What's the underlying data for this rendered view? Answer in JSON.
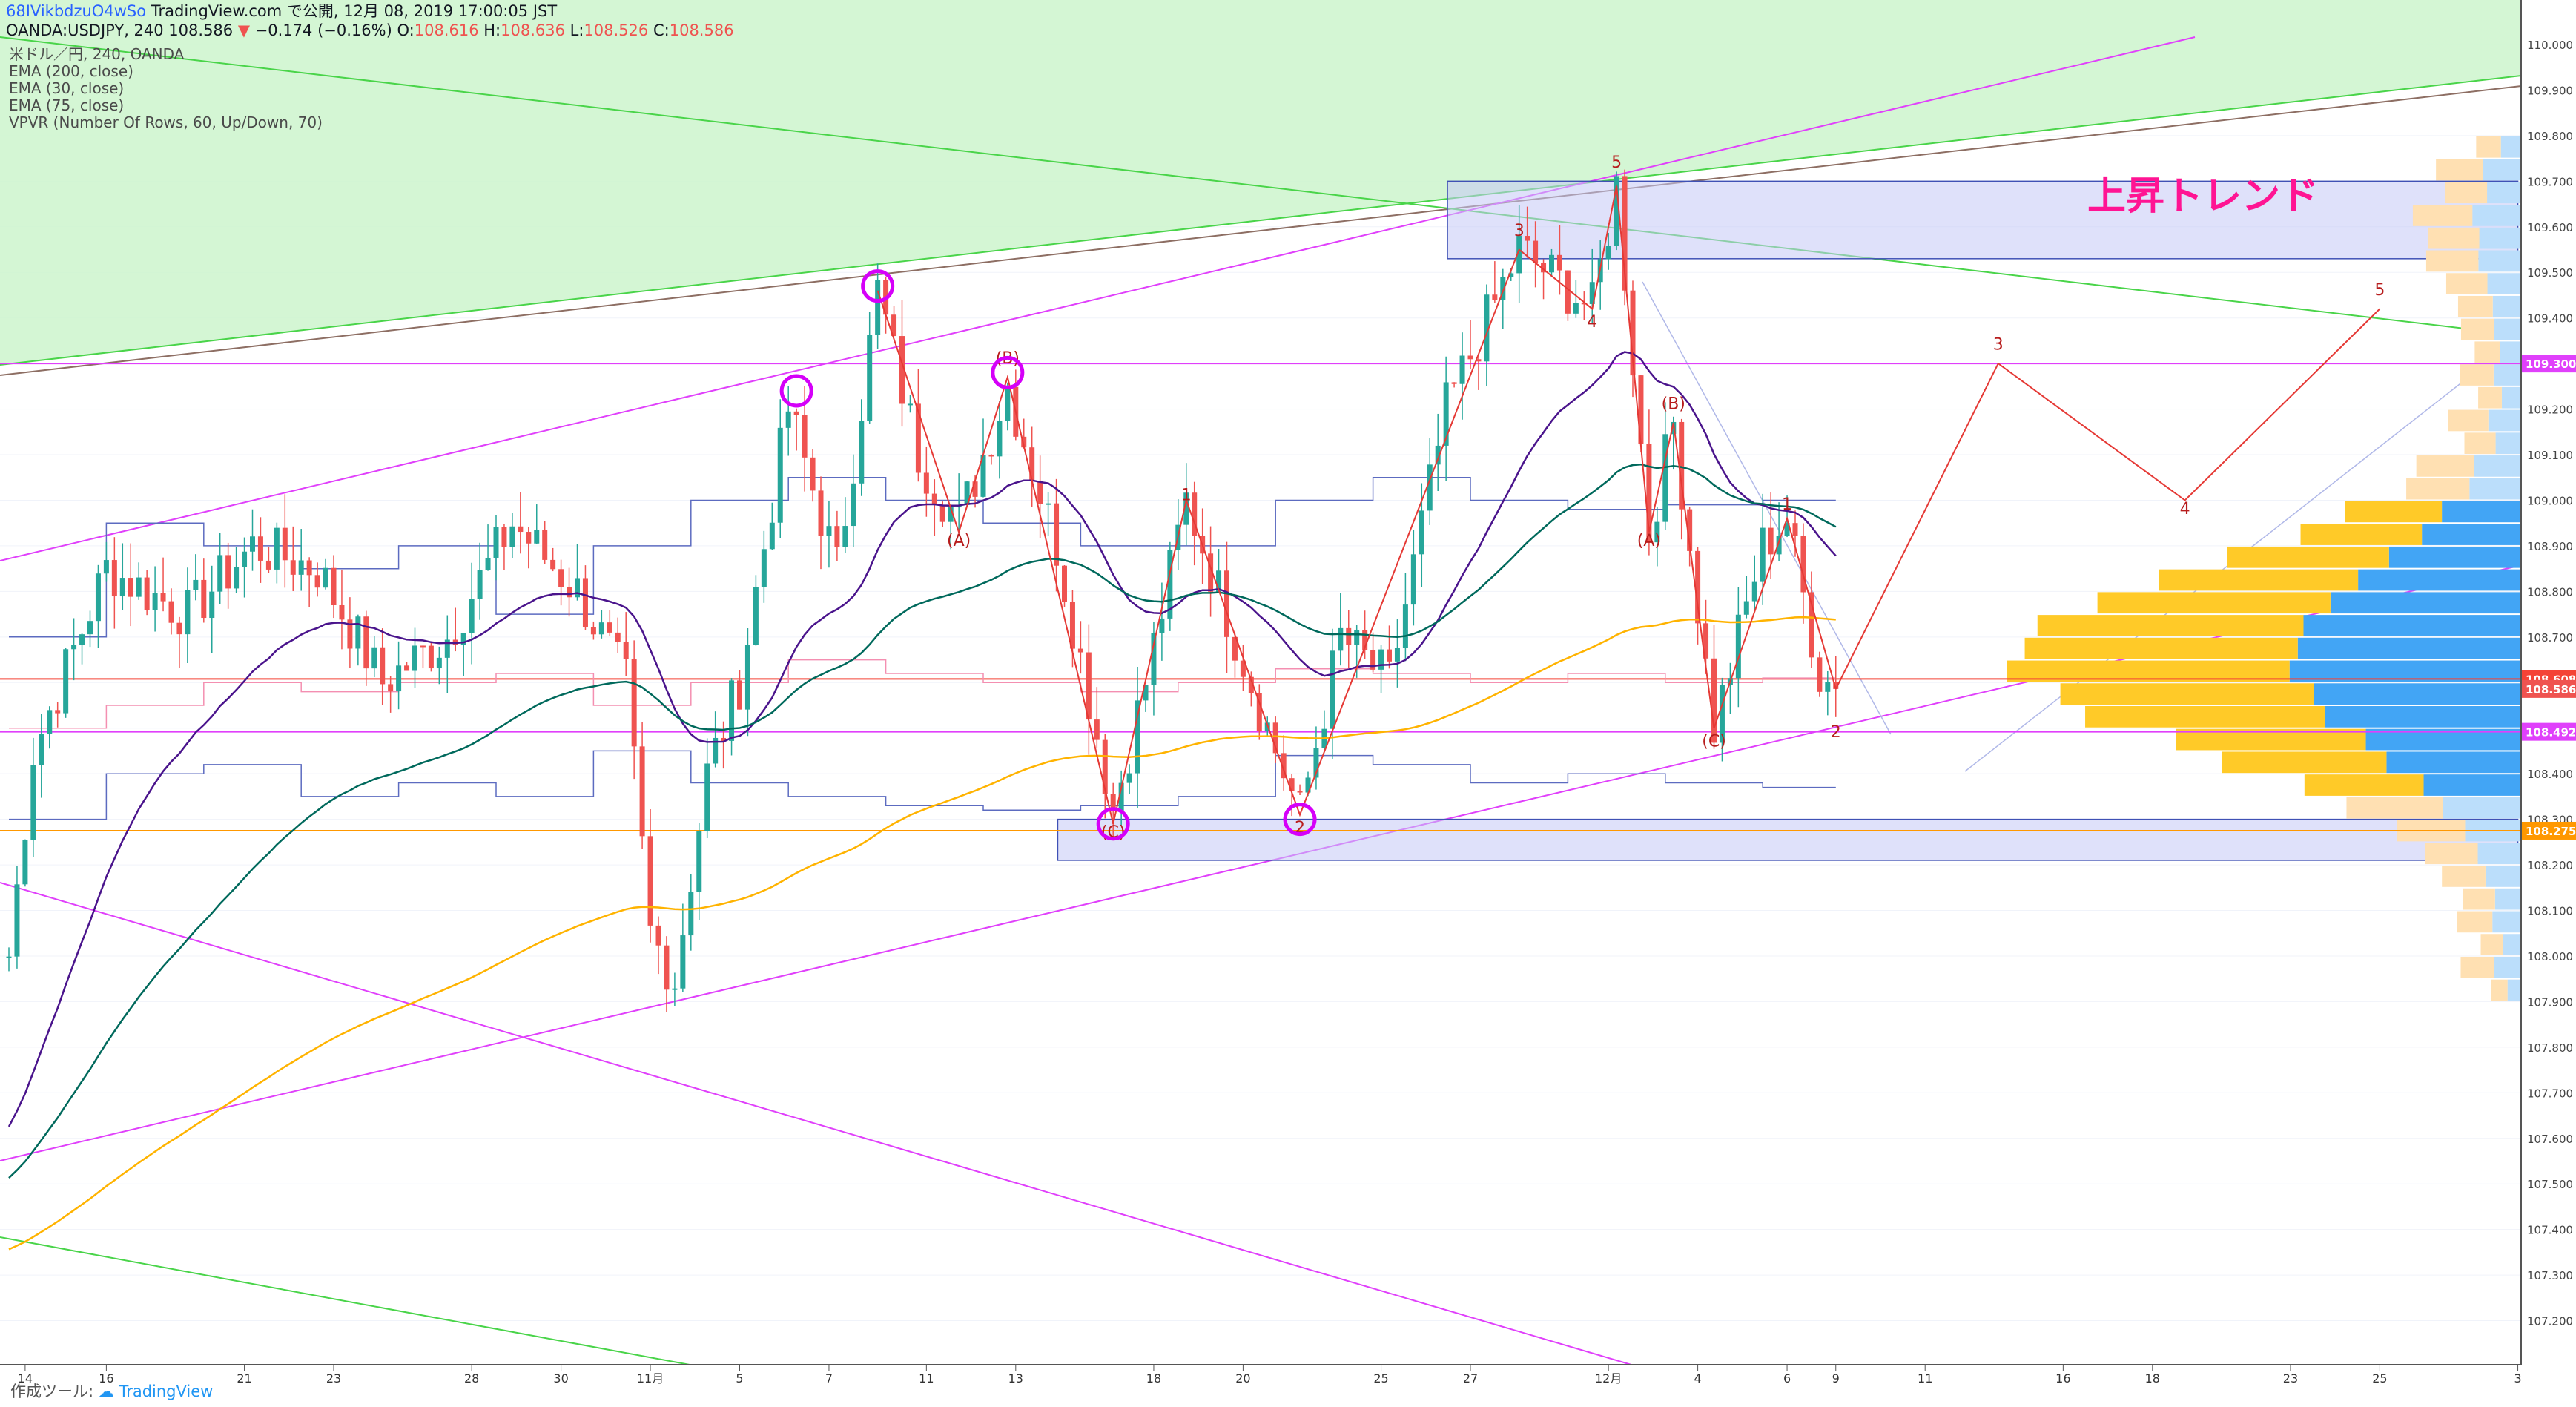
{
  "header": {
    "user": "68IVikbdzuO4wSo",
    "published": "TradingView.com で公開, 12月 08, 2019 17:00:05 JST",
    "symbol_line": "OANDA:USDJPY, 240 108.586",
    "change": "−0.174 (−0.16%)",
    "o_label": "O:",
    "o": "108.616",
    "h_label": "H:",
    "h": "108.636",
    "l_label": "L:",
    "l": "108.526",
    "c_label": "C:",
    "c": "108.586"
  },
  "indicators": [
    "米ドル／円, 240, OANDA",
    "EMA (200, close)",
    "EMA (30, close)",
    "EMA (75, close)",
    "VPVR (Number Of Rows, 60, Up/Down, 70)"
  ],
  "annotation": "上昇トレンド",
  "footer": {
    "made_with": "作成ツール:",
    "brand": "TradingView"
  },
  "colors": {
    "up": "#26a69a",
    "down": "#ef5350",
    "magenta": "#e040fb",
    "green": "#4caf50",
    "ema200": "#ffb300",
    "ema30": "#4a148c",
    "ema75": "#00695c",
    "wave": "#e53935"
  },
  "chart_data": {
    "type": "candlestick",
    "y_axis": {
      "min": 107.1,
      "max": 110.0,
      "ticks": [
        "107.200",
        "107.300",
        "107.400",
        "107.500",
        "107.600",
        "107.700",
        "107.800",
        "107.900",
        "108.000",
        "108.100",
        "108.200",
        "108.300",
        "108.400",
        "108.500",
        "108.600",
        "108.700",
        "108.800",
        "108.900",
        "109.000",
        "109.100",
        "109.200",
        "109.300",
        "109.400",
        "109.500",
        "109.600",
        "109.700",
        "109.800",
        "109.900",
        "110.000"
      ]
    },
    "x_axis": {
      "labels": [
        {
          "t": "14",
          "i": 2
        },
        {
          "t": "16",
          "i": 12
        },
        {
          "t": "21",
          "i": 29
        },
        {
          "t": "23",
          "i": 40
        },
        {
          "t": "28",
          "i": 57
        },
        {
          "t": "30",
          "i": 68
        },
        {
          "t": "11月",
          "i": 79
        },
        {
          "t": "5",
          "i": 90
        },
        {
          "t": "7",
          "i": 101
        },
        {
          "t": "11",
          "i": 113
        },
        {
          "t": "13",
          "i": 124
        },
        {
          "t": "18",
          "i": 141
        },
        {
          "t": "20",
          "i": 152
        },
        {
          "t": "25",
          "i": 169
        },
        {
          "t": "27",
          "i": 180
        },
        {
          "t": "12月",
          "i": 197
        },
        {
          "t": "4",
          "i": 208
        },
        {
          "t": "6",
          "i": 219
        },
        {
          "t": "9",
          "i": 225
        },
        {
          "t": "11",
          "i": 236
        },
        {
          "t": "16",
          "i": 253
        },
        {
          "t": "18",
          "i": 264
        },
        {
          "t": "23",
          "i": 281
        },
        {
          "t": "25",
          "i": 292
        },
        {
          "t": "3",
          "i": 309
        }
      ]
    },
    "price_labels": [
      {
        "text": "109.300",
        "value": 109.3,
        "color": "#e040fb"
      },
      {
        "text": "108.608",
        "value": 108.608,
        "color": "#f44336"
      },
      {
        "text": "108.586",
        "value": 108.586,
        "color": "#ef5350"
      },
      {
        "text": "108.492",
        "value": 108.492,
        "color": "#e040fb"
      },
      {
        "text": "108.275",
        "value": 108.275,
        "color": "#ff9800"
      }
    ],
    "horizontal_lines": [
      {
        "value": 109.3,
        "color": "#e040fb"
      },
      {
        "value": 108.608,
        "color": "#f44336"
      },
      {
        "value": 108.492,
        "color": "#e040fb"
      },
      {
        "value": 108.275,
        "color": "#ff9800"
      }
    ],
    "zones": [
      {
        "i1": 179,
        "i2": 309,
        "y1": 109.53,
        "y2": 109.7
      },
      {
        "i1": 131,
        "i2": 309,
        "y1": 108.21,
        "y2": 108.3
      }
    ],
    "keypoints": [
      [
        0,
        108.0
      ],
      [
        3,
        108.45
      ],
      [
        12,
        108.85
      ],
      [
        22,
        108.75
      ],
      [
        30,
        108.9
      ],
      [
        38,
        108.85
      ],
      [
        46,
        108.6
      ],
      [
        54,
        108.7
      ],
      [
        62,
        108.95
      ],
      [
        70,
        108.8
      ],
      [
        76,
        108.6
      ],
      [
        79,
        108.05
      ],
      [
        82,
        107.95
      ],
      [
        86,
        108.4
      ],
      [
        90,
        108.6
      ],
      [
        96,
        109.2
      ],
      [
        102,
        108.85
      ],
      [
        107,
        109.46
      ],
      [
        112,
        109.1
      ],
      [
        117,
        108.95
      ],
      [
        123,
        109.25
      ],
      [
        129,
        108.9
      ],
      [
        136,
        108.32
      ],
      [
        140,
        108.6
      ],
      [
        145,
        109.0
      ],
      [
        150,
        108.75
      ],
      [
        155,
        108.5
      ],
      [
        159,
        108.31
      ],
      [
        164,
        108.7
      ],
      [
        170,
        108.6
      ],
      [
        177,
        109.2
      ],
      [
        186,
        109.55
      ],
      [
        195,
        109.42
      ],
      [
        198,
        109.69
      ],
      [
        202,
        108.93
      ],
      [
        205,
        109.17
      ],
      [
        210,
        108.5
      ],
      [
        216,
        108.9
      ],
      [
        219,
        108.96
      ],
      [
        223,
        108.62
      ],
      [
        225,
        108.586
      ]
    ],
    "wave_projection": [
      [
        225,
        108.586
      ],
      [
        245,
        109.3
      ],
      [
        268,
        109.0
      ],
      [
        292,
        109.42
      ]
    ],
    "wave_labels": [
      {
        "t": "(A)",
        "i": 117,
        "v": 108.9
      },
      {
        "t": "(B)",
        "i": 123,
        "v": 109.3
      },
      {
        "t": "(C)",
        "i": 136,
        "v": 108.26
      },
      {
        "t": "1",
        "i": 145,
        "v": 109.0
      },
      {
        "t": "2",
        "i": 159,
        "v": 108.27
      },
      {
        "t": "3",
        "i": 186,
        "v": 109.58
      },
      {
        "t": "4",
        "i": 195,
        "v": 109.38
      },
      {
        "t": "5",
        "i": 198,
        "v": 109.73
      },
      {
        "t": "(A)",
        "i": 202,
        "v": 108.9
      },
      {
        "t": "(B)",
        "i": 205,
        "v": 109.2
      },
      {
        "t": "(C)",
        "i": 210,
        "v": 108.46
      },
      {
        "t": "1",
        "i": 219,
        "v": 108.98
      },
      {
        "t": "2",
        "i": 225,
        "v": 108.48
      },
      {
        "t": "3",
        "i": 245,
        "v": 109.33
      },
      {
        "t": "4",
        "i": 268,
        "v": 108.97
      },
      {
        "t": "5",
        "i": 292,
        "v": 109.45
      }
    ],
    "circles": [
      [
        97,
        109.24
      ],
      [
        107,
        109.47
      ],
      [
        123,
        109.28
      ],
      [
        136,
        108.29
      ],
      [
        159,
        108.3
      ]
    ]
  }
}
